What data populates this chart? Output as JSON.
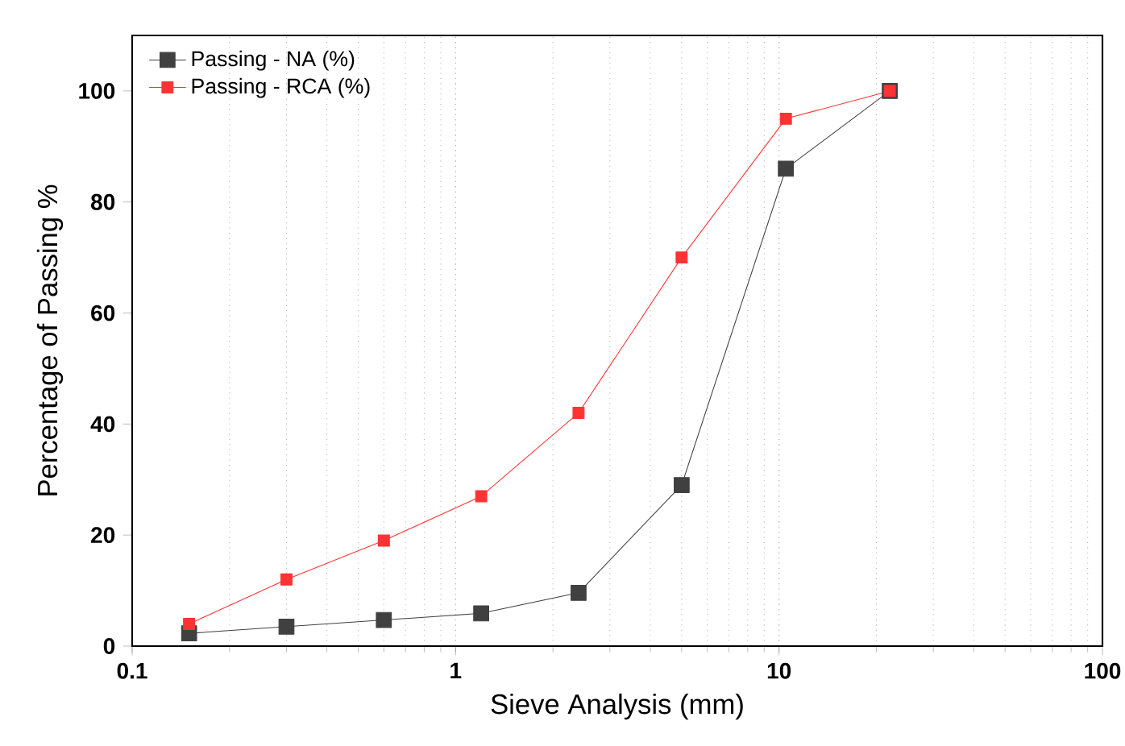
{
  "chart_data": {
    "type": "line",
    "xlabel": "Sieve Analysis (mm)",
    "ylabel": "Percentage of Passing %",
    "x": [
      0.15,
      0.3,
      0.6,
      1.2,
      2.4,
      5,
      10.5,
      22
    ],
    "series": [
      {
        "name": "Passing - NA (%)",
        "color": "#404040",
        "values": [
          2.3,
          3.5,
          4.7,
          5.9,
          9.6,
          29,
          86,
          100
        ]
      },
      {
        "name": "Passing - RCA (%)",
        "color": "#ff3333",
        "values": [
          4,
          12,
          19,
          27,
          42,
          70,
          95,
          100
        ]
      }
    ],
    "log": "x",
    "xlim": [
      0.1,
      100
    ],
    "xticks": [
      0.1,
      1,
      10,
      100
    ],
    "ylim": [
      0,
      110
    ],
    "yticks": [
      0,
      20,
      40,
      60,
      80,
      100
    ],
    "grid": "x",
    "legend": "top left",
    "marker": "square",
    "line_style": "solid"
  }
}
